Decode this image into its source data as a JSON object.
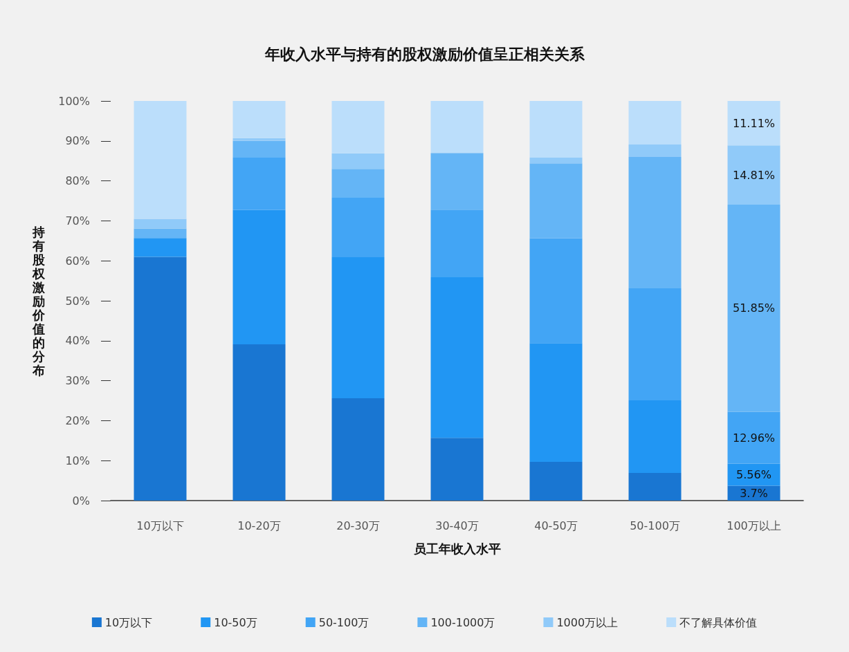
{
  "chart_data": {
    "type": "bar",
    "title": "年收入水平与持有的股权激励价值呈正相关关系",
    "xlabel": "员工年收入水平",
    "ylabel": "持有股权激励价值的分布",
    "categories": [
      "10万以下",
      "10-20万",
      "20-30万",
      "30-40万",
      "40-50万",
      "50-100万",
      "100万以上"
    ],
    "stacked": true,
    "legend": "bottom",
    "grid": false,
    "ylim": [
      0,
      100
    ],
    "yticks": [
      {
        "value": 0,
        "label": "0%"
      },
      {
        "value": 10,
        "label": "10%"
      },
      {
        "value": 20,
        "label": "20%"
      },
      {
        "value": 30,
        "label": "30%"
      },
      {
        "value": 40,
        "label": "40%"
      },
      {
        "value": 50,
        "label": "50%"
      },
      {
        "value": 60,
        "label": "60%"
      },
      {
        "value": 70,
        "label": "70%"
      },
      {
        "value": 80,
        "label": "80%"
      },
      {
        "value": 90,
        "label": "90%"
      },
      {
        "value": 100,
        "label": "100%"
      }
    ],
    "series": [
      {
        "name": "10万以下",
        "color": "#1976d2",
        "values": [
          61,
          39.1,
          25.6,
          15.7,
          9.7,
          6.9,
          3.7
        ],
        "value_labels": [
          null,
          null,
          null,
          null,
          null,
          null,
          "3.7%"
        ]
      },
      {
        "name": "10-50万",
        "color": "#2196f3",
        "values": [
          4.7,
          33.6,
          35.3,
          40.2,
          29.7,
          18.2,
          5.56
        ],
        "value_labels": [
          null,
          null,
          null,
          null,
          null,
          null,
          "5.56%"
        ]
      },
      {
        "name": "50-100万",
        "color": "#42a5f5",
        "values": [
          0,
          13.1,
          14.9,
          16.9,
          26.2,
          28.0,
          12.96
        ],
        "value_labels": [
          null,
          null,
          null,
          null,
          null,
          null,
          "12.96%"
        ]
      },
      {
        "name": "100-1000万",
        "color": "#64b5f6",
        "values": [
          2.4,
          4.2,
          7.2,
          14.2,
          18.8,
          32.9,
          51.85
        ],
        "value_labels": [
          null,
          null,
          null,
          null,
          null,
          null,
          "51.85%"
        ]
      },
      {
        "name": "1000万以上",
        "color": "#90caf9",
        "values": [
          2.4,
          0.7,
          3.9,
          0,
          1.4,
          3.1,
          14.81
        ],
        "value_labels": [
          null,
          null,
          null,
          null,
          null,
          null,
          "14.81%"
        ]
      },
      {
        "name": "不了解具体价值",
        "color": "#bbdefb",
        "values": [
          29.5,
          9.3,
          13.1,
          13.0,
          14.2,
          10.9,
          11.11
        ],
        "value_labels": [
          null,
          null,
          null,
          null,
          null,
          null,
          "11.11%"
        ]
      }
    ]
  }
}
